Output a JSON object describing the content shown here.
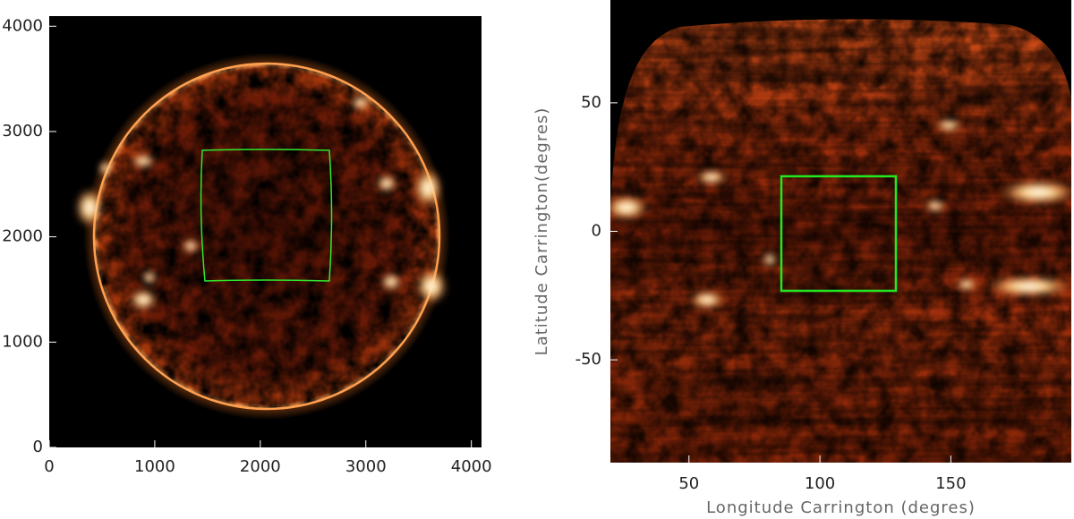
{
  "chart_data": [
    {
      "type": "image",
      "xlim": [
        0,
        4096
      ],
      "ylim": [
        0,
        4096
      ],
      "xticks": [
        0,
        1000,
        2000,
        3000,
        4000
      ],
      "yticks": [
        0,
        1000,
        2000,
        3000,
        4000
      ]
    },
    {
      "type": "image",
      "xlabel": "Longitude Carrington (degres)",
      "ylabel": "Latitude Carrington(degres)",
      "xlim": [
        20,
        196
      ],
      "ylim": [
        -90,
        90
      ],
      "xticks": [
        50,
        100,
        150
      ],
      "yticks": [
        -50,
        0,
        50
      ]
    }
  ]
}
